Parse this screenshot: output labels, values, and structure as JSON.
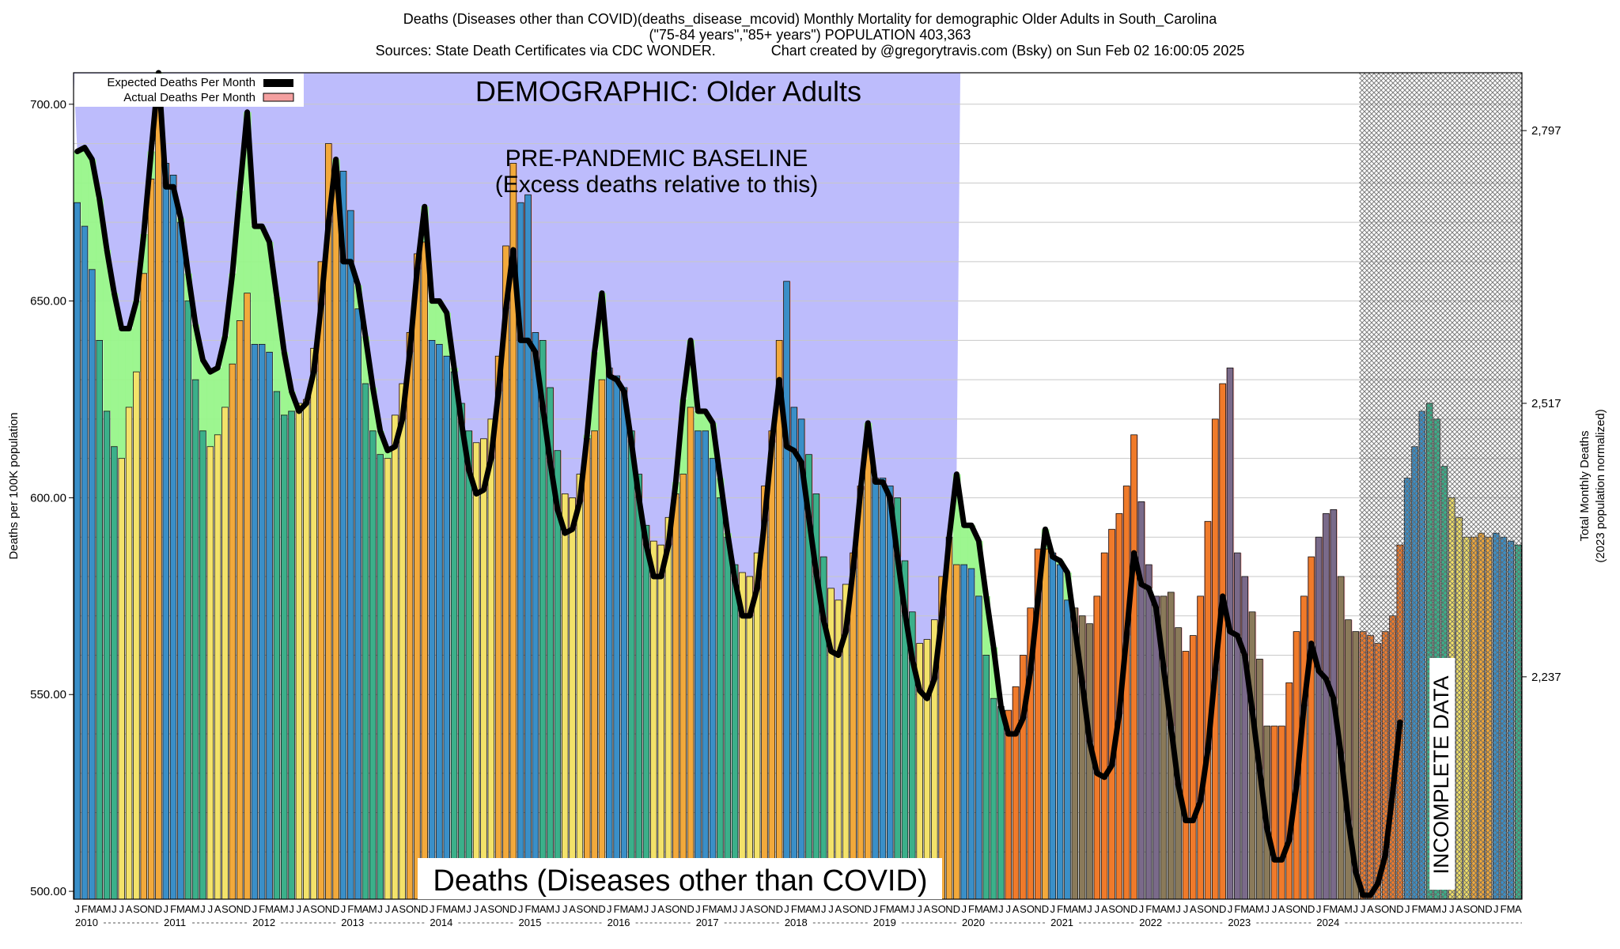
{
  "header": {
    "line1": "Deaths (Diseases other than COVID)(deaths_disease_mcovid) Monthly Mortality for demographic Older Adults in South_Carolina",
    "line2": "(\"75-84 years\",\"85+ years\") POPULATION 403,363",
    "line3": "Sources: State Death Certificates via CDC WONDER.              Chart created by @gregorytravis.com (Bsky) on Sun Feb 02 16:00:05 2025"
  },
  "chart_data": {
    "type": "bar",
    "title": "DEMOGRAPHIC: Older Adults",
    "baseline_title": "PRE-PANDEMIC BASELINE",
    "baseline_subtitle": "(Excess deaths relative to this)",
    "bottom_title": "Deaths (Diseases other than COVID)",
    "incomplete_label": "INCOMPLETE DATA",
    "ylabel": "Deaths per 100K population",
    "y2label_line1": "Total Monthly Deaths",
    "y2label_line2": "(2023 population normalized)",
    "ylim": [
      498,
      708
    ],
    "yticks": [
      {
        "value": 500,
        "label": "500.00"
      },
      {
        "value": 550,
        "label": "550.00"
      },
      {
        "value": 600,
        "label": "600.00"
      },
      {
        "value": 650,
        "label": "650.00"
      },
      {
        "value": 700,
        "label": "700.00"
      }
    ],
    "y2ticks": [
      {
        "value": 554.5,
        "label": "2,237"
      },
      {
        "value": 624.0,
        "label": "2,517"
      },
      {
        "value": 693.3,
        "label": "2,797"
      }
    ],
    "grid": true,
    "start": "2010-01",
    "month_letters": [
      "J",
      "F",
      "M",
      "A",
      "M",
      "J",
      "J",
      "A",
      "S",
      "O",
      "N",
      "D"
    ],
    "years": [
      "2010",
      "2011",
      "2012",
      "2013",
      "2014",
      "2015",
      "2016",
      "2017",
      "2018",
      "2019",
      "2020",
      "2021",
      "2022",
      "2023",
      "2024"
    ],
    "baseline_end": "2019-12",
    "incomplete_from": "2024-07",
    "legend": {
      "position": "top-left",
      "entries": [
        {
          "name": "Expected Deaths Per Month",
          "color": "#000000"
        },
        {
          "name": "Actual Deaths Per Month",
          "color": "#f4a0a0"
        }
      ]
    },
    "colors": {
      "winter": "#3a8fc8",
      "spring": "#3bb08a",
      "summer": "#f3e26a",
      "fall": "#f2a93b",
      "excess": "#f07a2a",
      "deficit_fill": "#98f58a",
      "baseline_fill": "#bdbcfc",
      "expected_line": "#000000"
    },
    "series": [
      {
        "name": "Actual Deaths Per Month",
        "values": [
          675,
          669,
          658,
          640,
          622,
          613,
          610,
          623,
          632,
          657,
          681,
          704,
          685,
          682,
          670,
          650,
          630,
          617,
          613,
          616,
          623,
          634,
          645,
          652,
          639,
          639,
          637,
          627,
          621,
          622,
          624,
          625,
          638,
          660,
          690,
          682,
          683,
          673,
          648,
          629,
          617,
          611,
          610,
          621,
          629,
          642,
          662,
          665,
          640,
          639,
          636,
          632,
          624,
          617,
          614,
          615,
          620,
          636,
          664,
          685,
          675,
          677,
          642,
          640,
          628,
          612,
          601,
          600,
          606,
          615,
          617,
          630,
          633,
          631,
          628,
          617,
          606,
          593,
          589,
          588,
          595,
          601,
          606,
          623,
          617,
          617,
          610,
          600,
          590,
          583,
          581,
          580,
          586,
          603,
          617,
          640,
          655,
          623,
          620,
          611,
          601,
          585,
          577,
          574,
          578,
          586,
          603,
          617,
          605,
          605,
          603,
          600,
          584,
          571,
          563,
          564,
          569,
          580,
          590,
          583,
          583,
          582,
          575,
          560,
          549,
          547,
          546,
          552,
          560,
          572,
          587,
          587,
          586,
          583,
          574,
          572,
          570,
          568,
          575,
          586,
          592,
          596,
          603,
          616,
          599,
          583,
          575,
          575,
          576,
          567,
          561,
          565,
          575,
          594,
          620,
          629,
          633,
          586,
          580,
          571,
          559,
          542,
          542,
          542,
          553,
          566,
          575,
          585,
          590,
          596,
          597,
          580,
          569,
          566,
          566,
          565,
          563,
          566,
          570,
          588,
          605,
          613,
          622,
          624,
          620,
          608,
          600,
          595,
          590,
          590,
          591,
          590,
          591,
          590,
          589,
          588
        ]
      },
      {
        "name": "Expected Deaths Per Month",
        "values": [
          688,
          689,
          686,
          676,
          663,
          652,
          643,
          643,
          650,
          667,
          688,
          708,
          679,
          679,
          671,
          657,
          644,
          635,
          632,
          633,
          641,
          657,
          678,
          698,
          669,
          669,
          665,
          651,
          637,
          627,
          622,
          624,
          632,
          649,
          670,
          686,
          660,
          660,
          654,
          641,
          628,
          617,
          612,
          613,
          620,
          637,
          658,
          674,
          650,
          650,
          647,
          633,
          619,
          607,
          601,
          602,
          610,
          627,
          648,
          663,
          640,
          640,
          637,
          623,
          609,
          597,
          591,
          592,
          599,
          616,
          637,
          652,
          631,
          630,
          627,
          614,
          600,
          588,
          580,
          580,
          588,
          604,
          625,
          640,
          622,
          622,
          619,
          605,
          591,
          579,
          570,
          570,
          577,
          594,
          614,
          630,
          613,
          612,
          609,
          595,
          581,
          569,
          561,
          560,
          566,
          582,
          602,
          619,
          604,
          604,
          600,
          585,
          571,
          559,
          551,
          549,
          554,
          570,
          590,
          606,
          593,
          593,
          589,
          575,
          562,
          547,
          540,
          540,
          544,
          556,
          574,
          592,
          585,
          584,
          581,
          567,
          553,
          538,
          530,
          529,
          532,
          545,
          565,
          586,
          578,
          577,
          572,
          557,
          542,
          527,
          518,
          518,
          523,
          536,
          556,
          575,
          566,
          565,
          560,
          546,
          531,
          516,
          508,
          508,
          513,
          527,
          547,
          563,
          556,
          554,
          549,
          535,
          518,
          505,
          499,
          499,
          502,
          509,
          525,
          543
        ]
      }
    ]
  }
}
